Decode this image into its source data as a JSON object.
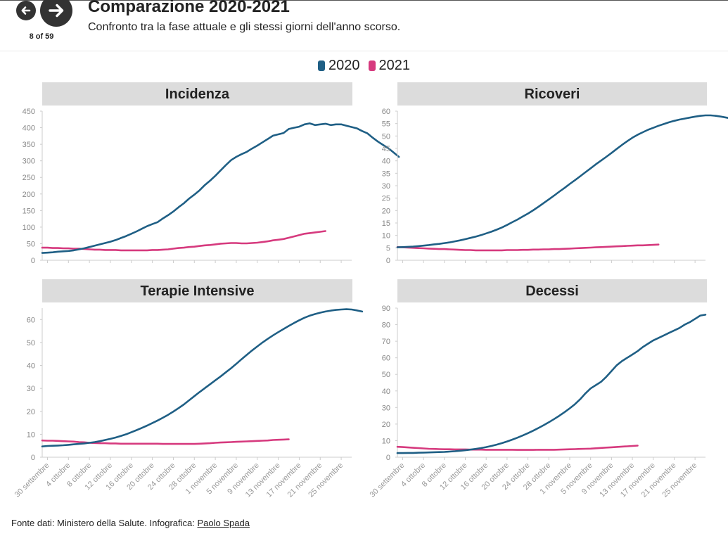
{
  "header": {
    "title": "Comparazione 2020-2021",
    "subtitle": "Confronto tra la fase attuale e gli stessi giorni dell'anno scorso.",
    "pager": "8 of 59",
    "prev_icon": "arrow-left-icon",
    "next_icon": "arrow-right-icon"
  },
  "legend": [
    {
      "label": "2020",
      "color": "#1f5f85"
    },
    {
      "label": "2021",
      "color": "#d63a7e"
    }
  ],
  "footer": {
    "source": "Fonte dati: Ministero della Salute. Infografica: ",
    "author": "Paolo Spada"
  },
  "chart_data": [
    {
      "type": "line",
      "title": "Incidenza",
      "ylim": [
        0,
        450
      ],
      "yticks": [
        0,
        50,
        100,
        150,
        200,
        250,
        300,
        350,
        400,
        450
      ],
      "series": [
        {
          "name": "2020",
          "start_day": 0,
          "values": [
            22,
            23,
            24,
            26,
            27,
            28,
            30,
            33,
            36,
            40,
            44,
            48,
            52,
            56,
            61,
            67,
            73,
            80,
            87,
            95,
            103,
            109,
            115,
            126,
            136,
            147,
            160,
            172,
            186,
            198,
            211,
            227,
            240,
            255,
            271,
            287,
            302,
            312,
            320,
            327,
            337,
            346,
            356,
            366,
            376,
            380,
            384,
            396,
            400,
            403,
            410,
            413,
            408,
            410,
            412,
            408,
            410,
            410,
            406,
            402,
            398,
            390,
            383,
            370,
            358,
            348,
            338,
            325,
            312
          ]
        },
        {
          "name": "2021",
          "start_day": 0,
          "values": [
            38,
            38,
            37,
            37,
            36,
            36,
            35,
            35,
            34,
            33,
            32,
            32,
            31,
            31,
            31,
            30,
            30,
            30,
            30,
            30,
            30,
            31,
            31,
            32,
            33,
            35,
            37,
            38,
            40,
            41,
            43,
            45,
            46,
            48,
            50,
            51,
            52,
            52,
            51,
            51,
            52,
            53,
            55,
            57,
            60,
            62,
            64,
            68,
            72,
            76,
            80,
            82,
            84,
            86,
            88
          ]
        }
      ]
    },
    {
      "type": "line",
      "title": "Ricoveri",
      "ylim": [
        0,
        60
      ],
      "yticks": [
        0,
        5,
        10,
        15,
        20,
        25,
        30,
        35,
        40,
        45,
        50,
        55,
        60
      ],
      "series": [
        {
          "name": "2020",
          "start_day": 0,
          "values": [
            5.2,
            5.3,
            5.4,
            5.5,
            5.7,
            5.9,
            6.1,
            6.4,
            6.6,
            6.9,
            7.2,
            7.6,
            8.0,
            8.5,
            9.0,
            9.5,
            10.1,
            10.8,
            11.5,
            12.3,
            13.2,
            14.2,
            15.3,
            16.4,
            17.6,
            18.8,
            20.1,
            21.5,
            23.0,
            24.5,
            26.0,
            27.6,
            29.1,
            30.7,
            32.2,
            33.8,
            35.4,
            37.0,
            38.6,
            40.1,
            41.6,
            43.2,
            44.8,
            46.4,
            47.9,
            49.3,
            50.5,
            51.5,
            52.5,
            53.3,
            54.1,
            54.8,
            55.5,
            56.1,
            56.6,
            57.0,
            57.4,
            57.8,
            58.1,
            58.3,
            58.3,
            58.1,
            57.8,
            57.4,
            57.0,
            56.6,
            56.2
          ]
        },
        {
          "name": "2021",
          "start_day": 0,
          "values": [
            5.3,
            5.2,
            5.1,
            5.0,
            4.9,
            4.8,
            4.7,
            4.6,
            4.5,
            4.5,
            4.4,
            4.3,
            4.2,
            4.1,
            4.1,
            4.0,
            4.0,
            4.0,
            4.0,
            4.0,
            4.0,
            4.1,
            4.1,
            4.1,
            4.2,
            4.2,
            4.3,
            4.3,
            4.4,
            4.4,
            4.5,
            4.5,
            4.6,
            4.7,
            4.8,
            4.9,
            5.0,
            5.1,
            5.2,
            5.3,
            5.4,
            5.5,
            5.6,
            5.7,
            5.8,
            5.9,
            6.0,
            6.0,
            6.1,
            6.2,
            6.3
          ]
        }
      ]
    },
    {
      "type": "line",
      "title": "Terapie Intensive",
      "ylim": [
        0,
        65
      ],
      "yticks": [
        0,
        10,
        20,
        30,
        40,
        50,
        60
      ],
      "xticks": [
        "30 settembre",
        "4 ottobre",
        "8 ottobre",
        "12 ottobre",
        "16 ottobre",
        "20 ottobre",
        "24 ottobre",
        "28 ottobre",
        "1 novembre",
        "5 novembre",
        "9 novembre",
        "13 novembre",
        "17 novembre",
        "21 novembre",
        "25 novembre"
      ],
      "xtick_step_days": 4,
      "total_days": 59,
      "series": [
        {
          "name": "2020",
          "start_day": 0,
          "values": [
            4.7,
            4.9,
            5.0,
            5.1,
            5.2,
            5.4,
            5.6,
            5.8,
            6.0,
            6.3,
            6.6,
            7.0,
            7.5,
            8.0,
            8.6,
            9.3,
            10.0,
            10.9,
            11.8,
            12.8,
            13.8,
            14.9,
            16.0,
            17.2,
            18.5,
            19.9,
            21.4,
            23.0,
            24.8,
            26.6,
            28.4,
            30.1,
            31.8,
            33.5,
            35.2,
            37.0,
            38.8,
            40.7,
            42.7,
            44.6,
            46.5,
            48.3,
            50.0,
            51.6,
            53.1,
            54.5,
            55.9,
            57.2,
            58.5,
            59.7,
            60.8,
            61.7,
            62.4,
            63.0,
            63.5,
            63.9,
            64.2,
            64.4,
            64.5,
            64.4,
            64.0,
            63.5
          ]
        },
        {
          "name": "2021",
          "start_day": 0,
          "values": [
            7.3,
            7.2,
            7.2,
            7.1,
            7.0,
            6.9,
            6.8,
            6.6,
            6.5,
            6.3,
            6.2,
            6.1,
            6.1,
            6.0,
            6.0,
            5.9,
            5.9,
            5.9,
            5.9,
            5.9,
            5.9,
            5.9,
            5.9,
            5.8,
            5.8,
            5.8,
            5.8,
            5.8,
            5.8,
            5.8,
            5.9,
            6.0,
            6.1,
            6.3,
            6.4,
            6.5,
            6.6,
            6.7,
            6.8,
            6.9,
            7.0,
            7.1,
            7.2,
            7.3,
            7.5,
            7.6,
            7.7,
            7.8
          ]
        }
      ]
    },
    {
      "type": "line",
      "title": "Decessi",
      "ylim": [
        0,
        90
      ],
      "yticks": [
        0,
        10,
        20,
        30,
        40,
        50,
        60,
        70,
        80,
        90
      ],
      "xticks": [
        "30 settembre",
        "4 ottobre",
        "8 ottobre",
        "12 ottobre",
        "16 ottobre",
        "20 ottobre",
        "24 ottobre",
        "28 ottobre",
        "1 novembre",
        "5 novembre",
        "9 novembre",
        "13 novembre",
        "17 novembre",
        "21 novembre",
        "25 novembre"
      ],
      "xtick_step_days": 4,
      "total_days": 59,
      "series": [
        {
          "name": "2020",
          "start_day": 0,
          "values": [
            2.5,
            2.5,
            2.6,
            2.6,
            2.7,
            2.8,
            2.9,
            3.0,
            3.1,
            3.2,
            3.4,
            3.6,
            3.9,
            4.2,
            4.6,
            5.0,
            5.5,
            6.1,
            6.8,
            7.6,
            8.5,
            9.5,
            10.6,
            11.8,
            13.1,
            14.5,
            16.0,
            17.6,
            19.3,
            21.1,
            23.0,
            25.0,
            27.2,
            29.5,
            32.0,
            35.0,
            38.5,
            41.5,
            43.5,
            45.5,
            48.5,
            52.0,
            55.5,
            58.0,
            60.0,
            62.0,
            64.0,
            66.5,
            68.5,
            70.5,
            72.0,
            73.5,
            75.0,
            76.5,
            78.0,
            80.0,
            81.5,
            83.5,
            85.5,
            86.0
          ]
        },
        {
          "name": "2021",
          "start_day": 0,
          "values": [
            6.3,
            6.1,
            5.9,
            5.7,
            5.5,
            5.3,
            5.1,
            5.0,
            4.9,
            4.8,
            4.8,
            4.7,
            4.7,
            4.7,
            4.6,
            4.6,
            4.6,
            4.5,
            4.5,
            4.5,
            4.5,
            4.5,
            4.5,
            4.4,
            4.4,
            4.4,
            4.4,
            4.5,
            4.5,
            4.5,
            4.5,
            4.6,
            4.7,
            4.8,
            4.9,
            5.0,
            5.1,
            5.2,
            5.4,
            5.6,
            5.8,
            6.0,
            6.2,
            6.4,
            6.6,
            6.8,
            7.0
          ]
        }
      ]
    }
  ]
}
